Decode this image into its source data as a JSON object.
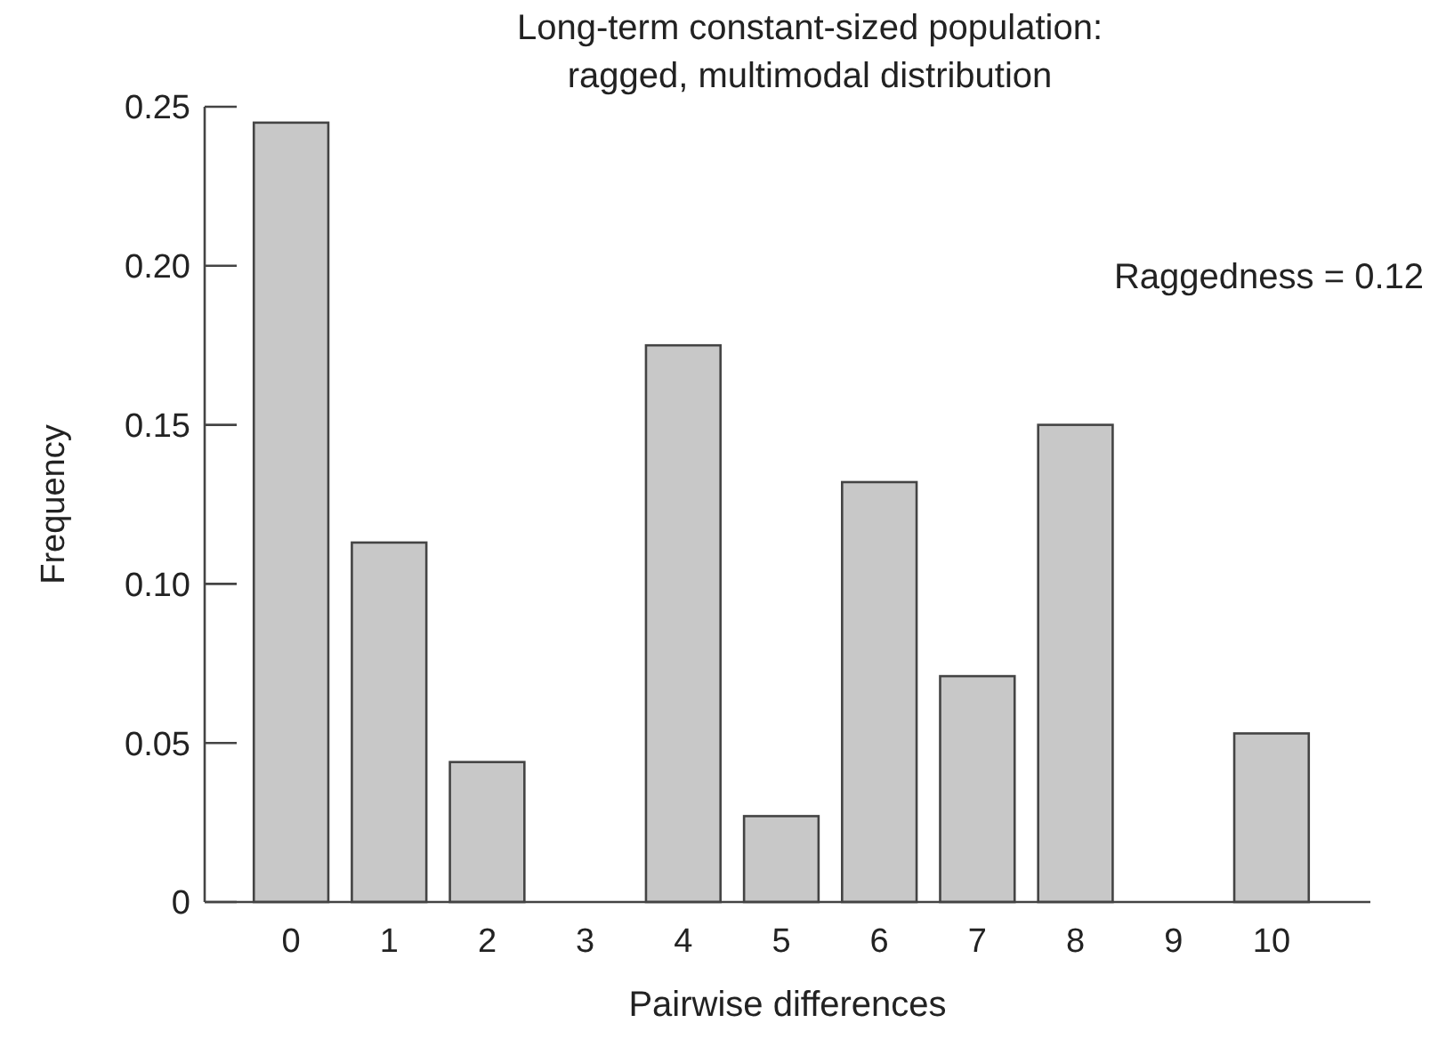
{
  "chart_data": {
    "type": "bar",
    "title": "Long-term constant-sized population:\nragged, multimodal distribution",
    "xlabel": "Pairwise differences",
    "ylabel": "Frequency",
    "categories": [
      "0",
      "1",
      "2",
      "3",
      "4",
      "5",
      "6",
      "7",
      "8",
      "9",
      "10"
    ],
    "values": [
      0.245,
      0.113,
      0.044,
      0,
      0.175,
      0.027,
      0.132,
      0.071,
      0.15,
      0,
      0.053
    ],
    "color": "#c8c8c8",
    "ylim": [
      0,
      0.25
    ],
    "yticks": [
      {
        "value": 0,
        "label": "0"
      },
      {
        "value": 0.05,
        "label": "0.05"
      },
      {
        "value": 0.1,
        "label": "0.10"
      },
      {
        "value": 0.15,
        "label": "0.15"
      },
      {
        "value": 0.2,
        "label": "0.20"
      },
      {
        "value": 0.25,
        "label": "0.25"
      }
    ],
    "annotations": [
      "Raggedness = 0.12"
    ]
  }
}
